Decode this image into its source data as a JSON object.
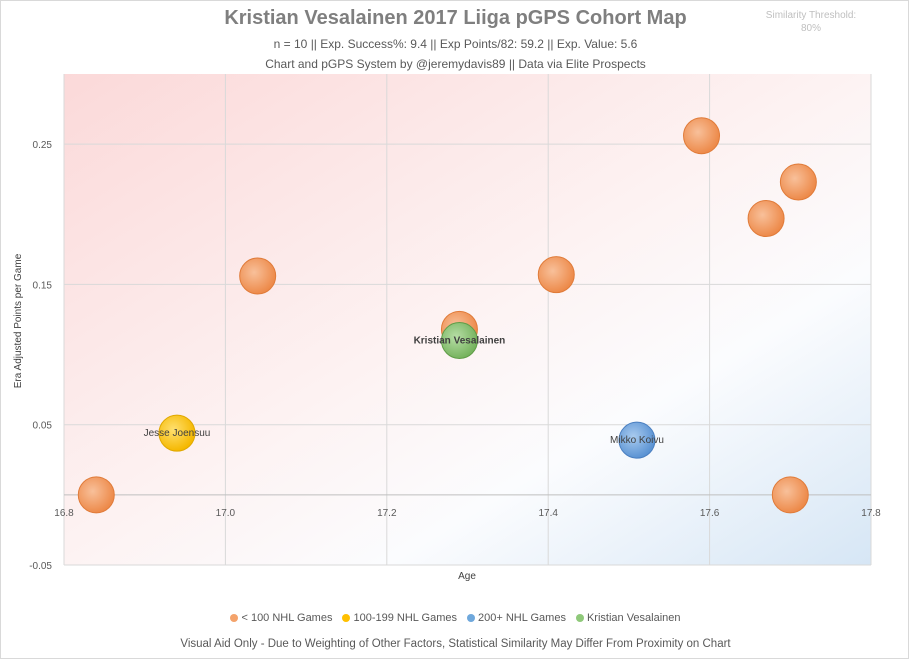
{
  "title": "Kristian Vesalainen 2017 Liiga pGPS Cohort Map",
  "subtitle1": "n = 10 || Exp. Success%: 9.4 || Exp Points/82: 59.2 || Exp. Value: 5.6",
  "subtitle2": "Chart and pGPS System by @jeremydavis89 || Data via Elite Prospects",
  "threshold_label": "Similarity Threshold:",
  "threshold_value": "80%",
  "footer": "Visual Aid Only - Due to Weighting of Other Factors, Statistical Similarity May Differ From Proximity on Chart",
  "chart_data": {
    "type": "scatter",
    "title": "Kristian Vesalainen 2017 Liiga pGPS Cohort Map",
    "xlabel": "Age",
    "ylabel": "Era Adjusted Points per Game",
    "xlim": [
      16.8,
      17.8
    ],
    "ylim": [
      -0.05,
      0.3
    ],
    "xticks": [
      "16.8",
      "17.0",
      "17.2",
      "17.4",
      "17.6",
      "17.8"
    ],
    "yticks": [
      "-0.05",
      "0.05",
      "0.15",
      "0.25"
    ],
    "xtick_values": [
      16.8,
      17.0,
      17.2,
      17.4,
      17.6,
      17.8
    ],
    "ytick_values": [
      -0.05,
      0.05,
      0.15,
      0.25
    ],
    "grid": true,
    "legend_position": "bottom",
    "series": [
      {
        "name": "< 100 NHL Games",
        "color": "#f4a36b",
        "points": [
          {
            "x": 16.84,
            "y": 0.0
          },
          {
            "x": 17.04,
            "y": 0.156
          },
          {
            "x": 17.29,
            "y": 0.118
          },
          {
            "x": 17.41,
            "y": 0.157
          },
          {
            "x": 17.59,
            "y": 0.256
          },
          {
            "x": 17.67,
            "y": 0.197
          },
          {
            "x": 17.71,
            "y": 0.223
          },
          {
            "x": 17.7,
            "y": 0.0
          }
        ]
      },
      {
        "name": "100-199 NHL Games",
        "color": "#ffc000",
        "points": [
          {
            "x": 16.94,
            "y": 0.044,
            "label": "Jesse Joensuu"
          }
        ]
      },
      {
        "name": "200+ NHL Games",
        "color": "#6fa8dc",
        "points": [
          {
            "x": 17.51,
            "y": 0.039,
            "label": "Mikko Koivu"
          }
        ]
      },
      {
        "name": "Kristian Vesalainen",
        "color": "#8fc97a",
        "points": [
          {
            "x": 17.29,
            "y": 0.11,
            "label": "Kristian Vesalainen"
          }
        ]
      }
    ]
  }
}
